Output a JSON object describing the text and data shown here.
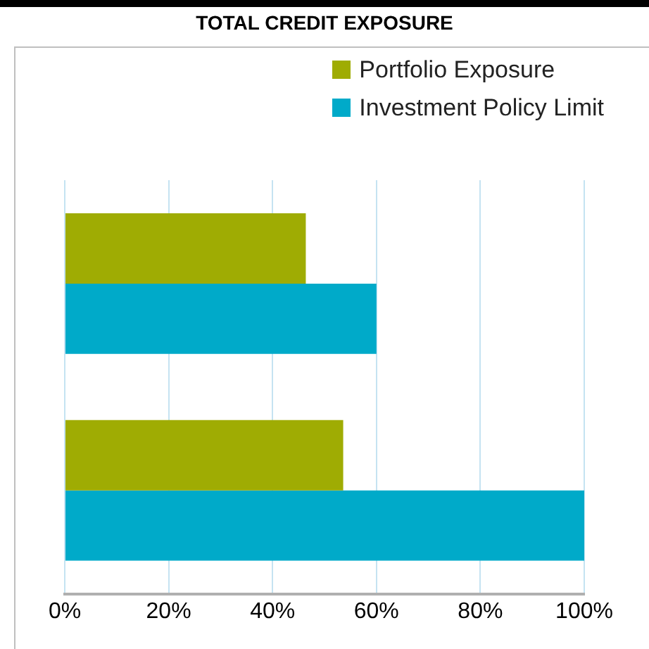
{
  "chart_data": {
    "type": "bar",
    "orientation": "horizontal",
    "title": "TOTAL CREDIT EXPOSURE",
    "categories": [
      null,
      null
    ],
    "series": [
      {
        "name": "Portfolio Exposure",
        "color": "#9fac03",
        "values": [
          46.4,
          53.6
        ]
      },
      {
        "name": "Investment Policy Limit",
        "color": "#00aac9",
        "values": [
          60,
          100
        ]
      }
    ],
    "xlim": [
      0,
      100
    ],
    "xticks": [
      {
        "value": 0,
        "label": "0%"
      },
      {
        "value": 20,
        "label": "20%"
      },
      {
        "value": 40,
        "label": "40%"
      },
      {
        "value": 60,
        "label": "60%"
      },
      {
        "value": 80,
        "label": "80%"
      },
      {
        "value": 100,
        "label": "100%"
      }
    ],
    "grid": "x",
    "legend": "top right"
  }
}
